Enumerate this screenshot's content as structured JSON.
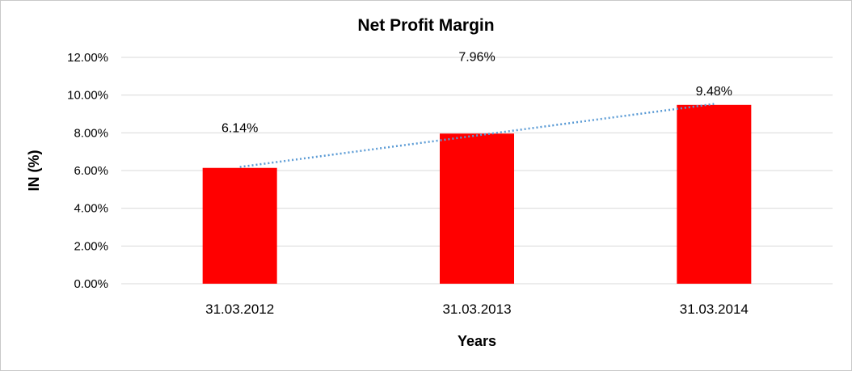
{
  "chart_data": {
    "type": "bar",
    "title": "Net Profit Margin",
    "xlabel": "Years",
    "ylabel": "IN (%)",
    "categories": [
      "31.03.2012",
      "31.03.2013",
      "31.03.2014"
    ],
    "values": [
      6.14,
      7.96,
      9.48
    ],
    "data_labels": [
      "6.14%",
      "7.96%",
      "9.48%"
    ],
    "ylim": [
      0,
      12
    ],
    "yticks": [
      "0.00%",
      "2.00%",
      "4.00%",
      "6.00%",
      "8.00%",
      "10.00%",
      "12.00%"
    ],
    "grid": true,
    "legend": "none",
    "trendline": "linear (dotted)",
    "colors": {
      "bar": "#ff0000",
      "trendline": "#5b9bd5",
      "grid": "#d9d9d9"
    }
  }
}
